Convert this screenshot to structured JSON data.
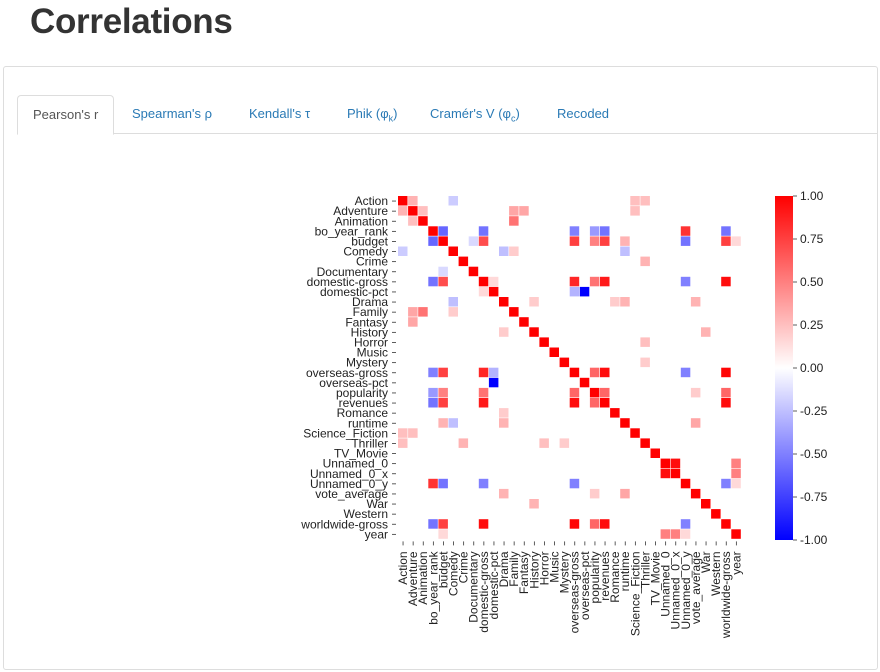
{
  "page": {
    "title": "Correlations"
  },
  "tabs": [
    {
      "label": "Pearson's r",
      "active": true
    },
    {
      "label": "Spearman's ρ",
      "active": false
    },
    {
      "label": "Kendall's τ",
      "active": false
    },
    {
      "label": "Phik (φ",
      "sub": "k",
      "suffix": ")",
      "active": false
    },
    {
      "label": "Cramér's V (φ",
      "sub": "c",
      "suffix": ")",
      "active": false
    },
    {
      "label": "Recoded",
      "active": false
    }
  ],
  "colors": {
    "positive": "#ff0000",
    "zero": "#ffffff",
    "negative": "#0000ff",
    "tab_link": "#2a7ab5"
  },
  "chart_data": {
    "type": "heatmap",
    "title": "",
    "variables": [
      "Action",
      "Adventure",
      "Animation",
      "bo_year_rank",
      "budget",
      "Comedy",
      "Crime",
      "Documentary",
      "domestic-gross",
      "domestic-pct",
      "Drama",
      "Family",
      "Fantasy",
      "History",
      "Horror",
      "Music",
      "Mystery",
      "overseas-gross",
      "overseas-pct",
      "popularity",
      "revenues",
      "Romance",
      "runtime",
      "Science_Fiction",
      "Thriller",
      "TV_Movie",
      "Unnamed_0",
      "Unnamed_0_x",
      "Unnamed_0_y",
      "vote_average",
      "War",
      "Western",
      "worldwide-gross",
      "year"
    ],
    "colorbar": {
      "min": -1.0,
      "max": 1.0,
      "ticks": [
        "1.00",
        "0.75",
        "0.50",
        "0.25",
        "0.00",
        "-0.25",
        "-0.50",
        "-0.75",
        "-1.00"
      ]
    },
    "notable_correlations": [
      {
        "a": "bo_year_rank",
        "b": "budget",
        "r": -0.6
      },
      {
        "a": "bo_year_rank",
        "b": "domestic-gross",
        "r": -0.55
      },
      {
        "a": "bo_year_rank",
        "b": "overseas-gross",
        "r": -0.5
      },
      {
        "a": "bo_year_rank",
        "b": "revenues",
        "r": -0.55
      },
      {
        "a": "bo_year_rank",
        "b": "worldwide-gross",
        "r": -0.55
      },
      {
        "a": "bo_year_rank",
        "b": "popularity",
        "r": -0.4
      },
      {
        "a": "bo_year_rank",
        "b": "Unnamed_0_y",
        "r": 0.8
      },
      {
        "a": "budget",
        "b": "domestic-gross",
        "r": 0.7
      },
      {
        "a": "budget",
        "b": "overseas-gross",
        "r": 0.75
      },
      {
        "a": "budget",
        "b": "revenues",
        "r": 0.75
      },
      {
        "a": "budget",
        "b": "worldwide-gross",
        "r": 0.75
      },
      {
        "a": "budget",
        "b": "popularity",
        "r": 0.5
      },
      {
        "a": "budget",
        "b": "Unnamed_0_y",
        "r": -0.55
      },
      {
        "a": "domestic-gross",
        "b": "overseas-gross",
        "r": 0.85
      },
      {
        "a": "domestic-gross",
        "b": "revenues",
        "r": 0.9
      },
      {
        "a": "domestic-gross",
        "b": "worldwide-gross",
        "r": 0.95
      },
      {
        "a": "domestic-gross",
        "b": "popularity",
        "r": 0.55
      },
      {
        "a": "domestic-gross",
        "b": "domestic-pct",
        "r": 0.15
      },
      {
        "a": "domestic-gross",
        "b": "Unnamed_0_y",
        "r": -0.5
      },
      {
        "a": "domestic-pct",
        "b": "overseas-pct",
        "r": -1.0
      },
      {
        "a": "domestic-pct",
        "b": "overseas-gross",
        "r": -0.3
      },
      {
        "a": "overseas-gross",
        "b": "revenues",
        "r": 0.95
      },
      {
        "a": "overseas-gross",
        "b": "worldwide-gross",
        "r": 0.98
      },
      {
        "a": "overseas-gross",
        "b": "popularity",
        "r": 0.6
      },
      {
        "a": "overseas-gross",
        "b": "Unnamed_0_y",
        "r": -0.5
      },
      {
        "a": "revenues",
        "b": "worldwide-gross",
        "r": 0.95
      },
      {
        "a": "revenues",
        "b": "popularity",
        "r": 0.6
      },
      {
        "a": "popularity",
        "b": "worldwide-gross",
        "r": 0.6
      },
      {
        "a": "Unnamed_0",
        "b": "Unnamed_0_x",
        "r": 0.95
      },
      {
        "a": "Unnamed_0",
        "b": "year",
        "r": 0.5
      },
      {
        "a": "Unnamed_0_x",
        "b": "year",
        "r": 0.5
      },
      {
        "a": "Unnamed_0_y",
        "b": "worldwide-gross",
        "r": -0.5
      },
      {
        "a": "Adventure",
        "b": "Animation",
        "r": 0.25
      },
      {
        "a": "Adventure",
        "b": "Family",
        "r": 0.35
      },
      {
        "a": "Adventure",
        "b": "Fantasy",
        "r": 0.35
      },
      {
        "a": "Animation",
        "b": "Family",
        "r": 0.55
      },
      {
        "a": "Action",
        "b": "Adventure",
        "r": 0.3
      },
      {
        "a": "Action",
        "b": "Science_Fiction",
        "r": 0.25
      },
      {
        "a": "Action",
        "b": "Thriller",
        "r": 0.25
      },
      {
        "a": "Action",
        "b": "Comedy",
        "r": -0.2
      },
      {
        "a": "Crime",
        "b": "Thriller",
        "r": 0.3
      },
      {
        "a": "Drama",
        "b": "Comedy",
        "r": -0.25
      },
      {
        "a": "Drama",
        "b": "History",
        "r": 0.2
      },
      {
        "a": "Drama",
        "b": "Romance",
        "r": 0.2
      },
      {
        "a": "Drama",
        "b": "runtime",
        "r": 0.3
      },
      {
        "a": "Drama",
        "b": "vote_average",
        "r": 0.3
      },
      {
        "a": "Horror",
        "b": "Thriller",
        "r": 0.25
      },
      {
        "a": "History",
        "b": "War",
        "r": 0.3
      },
      {
        "a": "runtime",
        "b": "vote_average",
        "r": 0.35
      },
      {
        "a": "runtime",
        "b": "budget",
        "r": 0.3
      },
      {
        "a": "Comedy",
        "b": "runtime",
        "r": -0.25
      },
      {
        "a": "Comedy",
        "b": "Family",
        "r": 0.2
      },
      {
        "a": "Documentary",
        "b": "budget",
        "r": -0.15
      },
      {
        "a": "vote_average",
        "b": "popularity",
        "r": 0.2
      },
      {
        "a": "year",
        "b": "budget",
        "r": 0.15
      },
      {
        "a": "year",
        "b": "Unnamed_0_y",
        "r": 0.15
      },
      {
        "a": "Mystery",
        "b": "Thriller",
        "r": 0.2
      },
      {
        "a": "Science_Fiction",
        "b": "Adventure",
        "r": 0.25
      }
    ]
  }
}
